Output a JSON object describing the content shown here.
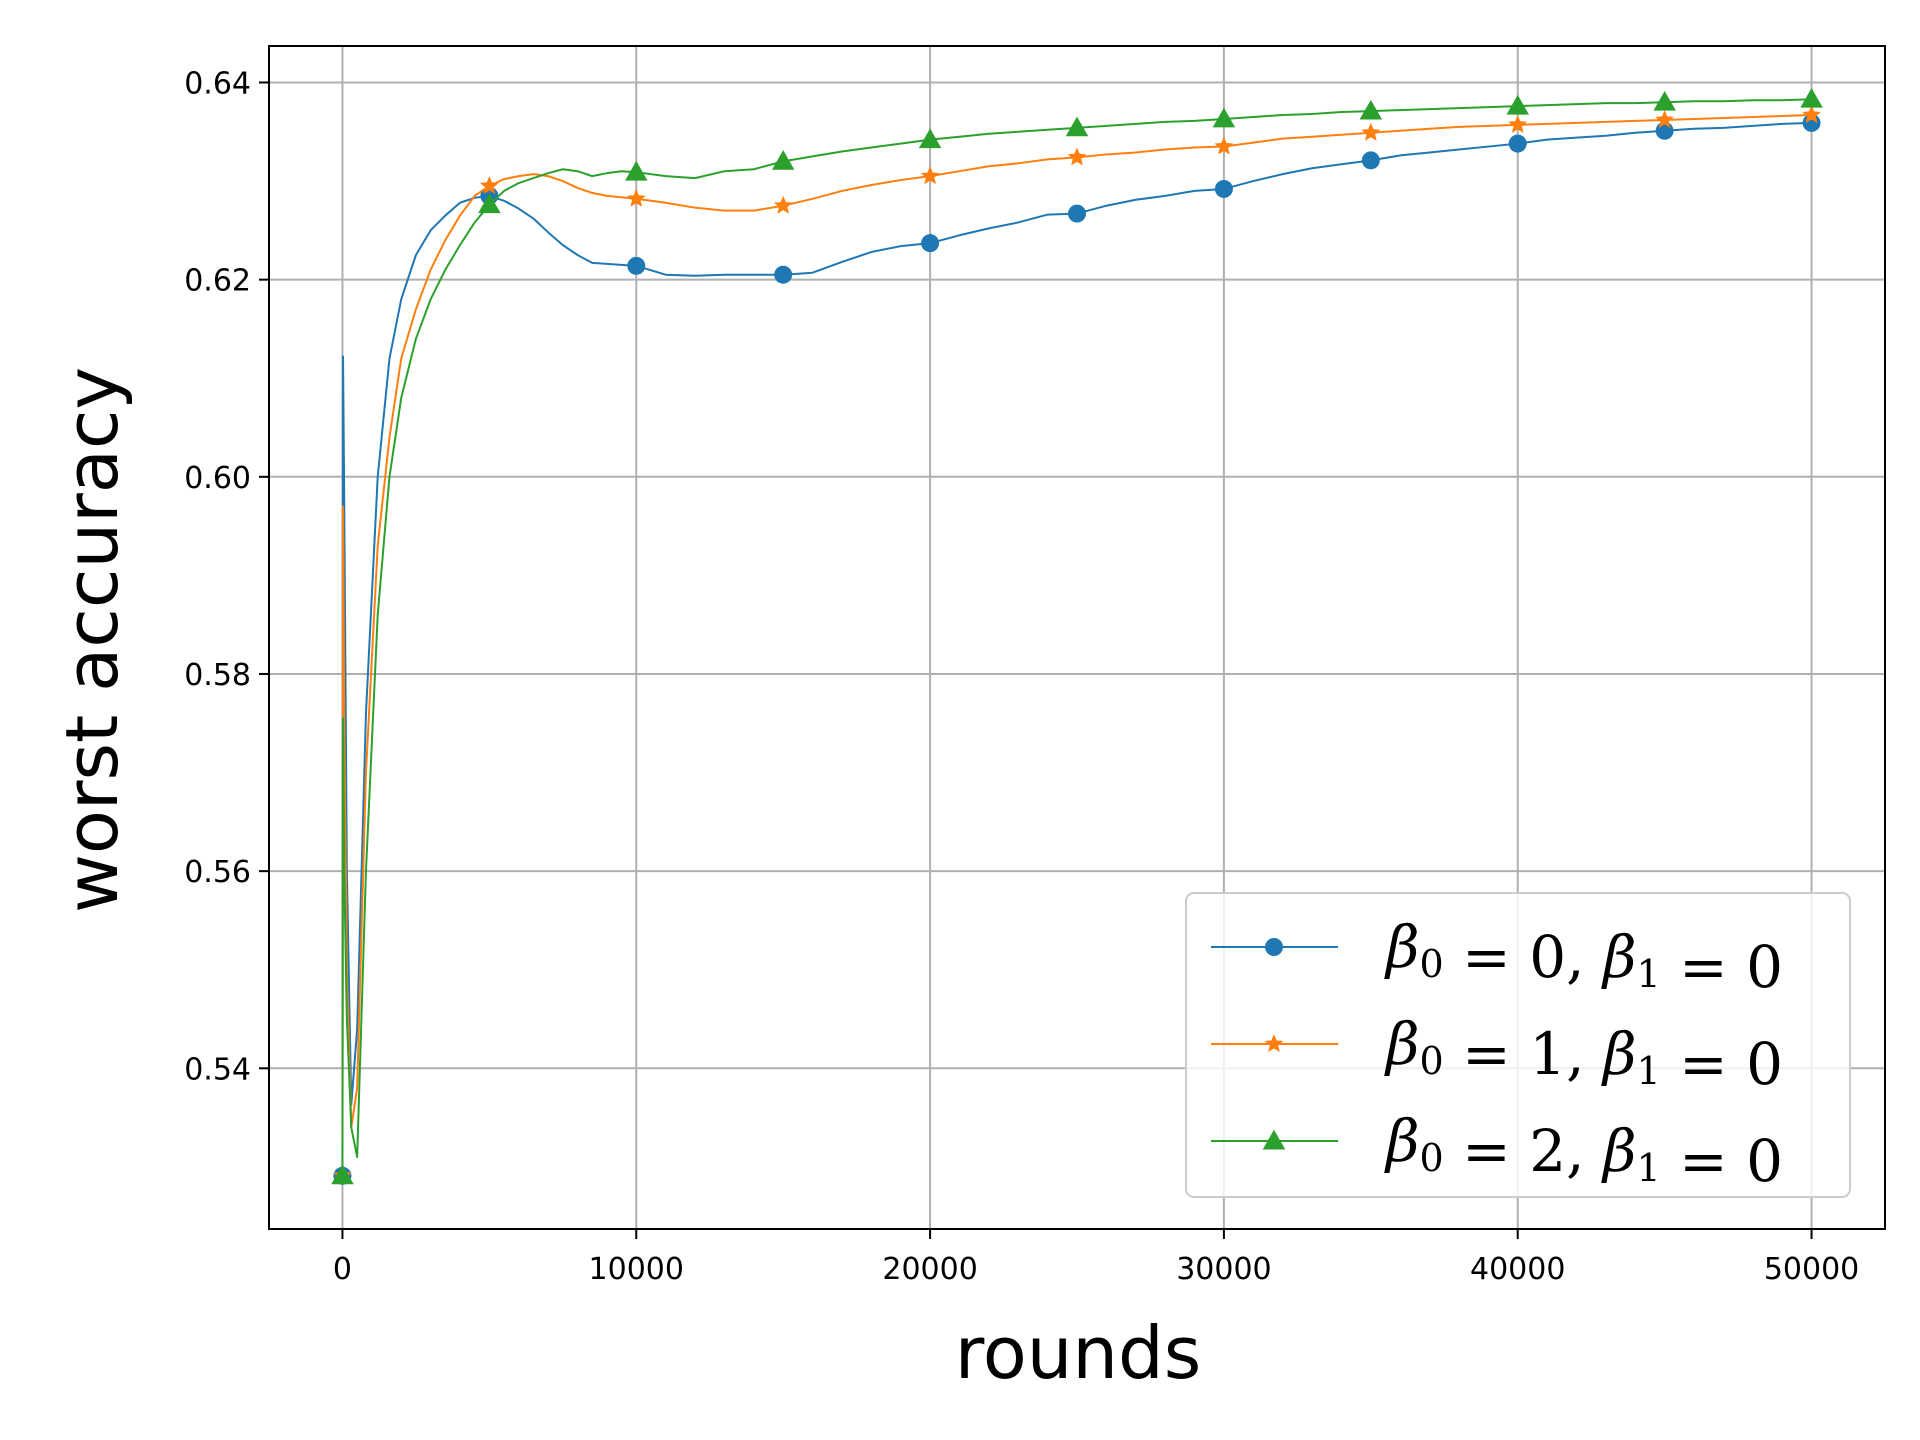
{
  "chart_data": {
    "type": "line",
    "xlabel": "rounds",
    "ylabel": "worst accuracy",
    "xlim": [
      -2500,
      52500
    ],
    "ylim": [
      0.5237,
      0.6437
    ],
    "xticks": [
      0,
      10000,
      20000,
      30000,
      40000,
      50000
    ],
    "xtick_labels": [
      "0",
      "10000",
      "20000",
      "30000",
      "40000",
      "50000"
    ],
    "yticks": [
      0.54,
      0.56,
      0.58,
      0.6,
      0.62,
      0.64
    ],
    "ytick_labels": [
      "0.54",
      "0.56",
      "0.58",
      "0.60",
      "0.62",
      "0.64"
    ],
    "grid": true,
    "legend_position": "bottom-right",
    "series": [
      {
        "name": "β0 = 0, β1 = 0",
        "legend": {
          "beta0": "0",
          "beta1": "0"
        },
        "color": "#1f77b4",
        "marker": "circle",
        "markers": [
          [
            0,
            0.5291
          ],
          [
            5000,
            0.6285
          ],
          [
            10000,
            0.6214
          ],
          [
            15000,
            0.6205
          ],
          [
            20000,
            0.6237
          ],
          [
            25000,
            0.6267
          ],
          [
            30000,
            0.6292
          ],
          [
            35000,
            0.6321
          ],
          [
            40000,
            0.6338
          ],
          [
            45000,
            0.6351
          ],
          [
            50000,
            0.6359
          ]
        ],
        "points": [
          [
            0,
            0.5291
          ],
          [
            20,
            0.6122
          ],
          [
            60,
            0.5975
          ],
          [
            150,
            0.56
          ],
          [
            300,
            0.5363
          ],
          [
            500,
            0.544
          ],
          [
            800,
            0.576
          ],
          [
            1200,
            0.6
          ],
          [
            1600,
            0.612
          ],
          [
            2000,
            0.618
          ],
          [
            2500,
            0.6225
          ],
          [
            3000,
            0.625
          ],
          [
            3500,
            0.6265
          ],
          [
            4000,
            0.6278
          ],
          [
            4500,
            0.6283
          ],
          [
            5000,
            0.6285
          ],
          [
            5500,
            0.628
          ],
          [
            6000,
            0.6272
          ],
          [
            6500,
            0.6262
          ],
          [
            7000,
            0.6248
          ],
          [
            7500,
            0.6235
          ],
          [
            8000,
            0.6225
          ],
          [
            8500,
            0.6217
          ],
          [
            9000,
            0.6216
          ],
          [
            10000,
            0.6214
          ],
          [
            11000,
            0.6205
          ],
          [
            12000,
            0.6204
          ],
          [
            13000,
            0.6205
          ],
          [
            14000,
            0.6205
          ],
          [
            15000,
            0.6205
          ],
          [
            16000,
            0.6207
          ],
          [
            17000,
            0.6218
          ],
          [
            18000,
            0.6228
          ],
          [
            19000,
            0.6234
          ],
          [
            20000,
            0.6237
          ],
          [
            21000,
            0.6245
          ],
          [
            22000,
            0.6252
          ],
          [
            23000,
            0.6258
          ],
          [
            24000,
            0.6266
          ],
          [
            25000,
            0.6267
          ],
          [
            26000,
            0.6275
          ],
          [
            27000,
            0.6281
          ],
          [
            28000,
            0.6285
          ],
          [
            29000,
            0.629
          ],
          [
            30000,
            0.6292
          ],
          [
            31000,
            0.63
          ],
          [
            32000,
            0.6307
          ],
          [
            33000,
            0.6313
          ],
          [
            34000,
            0.6317
          ],
          [
            35000,
            0.6321
          ],
          [
            36000,
            0.6326
          ],
          [
            37000,
            0.6329
          ],
          [
            38000,
            0.6332
          ],
          [
            39000,
            0.6335
          ],
          [
            40000,
            0.6338
          ],
          [
            41000,
            0.6342
          ],
          [
            42000,
            0.6344
          ],
          [
            43000,
            0.6346
          ],
          [
            44000,
            0.6349
          ],
          [
            45000,
            0.6351
          ],
          [
            46000,
            0.6353
          ],
          [
            47000,
            0.6354
          ],
          [
            48000,
            0.6356
          ],
          [
            49000,
            0.6358
          ],
          [
            50000,
            0.6359
          ]
        ]
      },
      {
        "name": "β0 = 1, β1 = 0",
        "legend": {
          "beta0": "1",
          "beta1": "0"
        },
        "color": "#ff7f0e",
        "marker": "star",
        "markers": [
          [
            0,
            0.5291
          ],
          [
            5000,
            0.6295
          ],
          [
            10000,
            0.6282
          ],
          [
            15000,
            0.6275
          ],
          [
            20000,
            0.6305
          ],
          [
            25000,
            0.6324
          ],
          [
            30000,
            0.6335
          ],
          [
            35000,
            0.6349
          ],
          [
            40000,
            0.6357
          ],
          [
            45000,
            0.6362
          ],
          [
            50000,
            0.6367
          ]
        ],
        "points": [
          [
            0,
            0.5291
          ],
          [
            20,
            0.597
          ],
          [
            60,
            0.575
          ],
          [
            150,
            0.55
          ],
          [
            300,
            0.534
          ],
          [
            500,
            0.538
          ],
          [
            800,
            0.57
          ],
          [
            1200,
            0.593
          ],
          [
            1600,
            0.604
          ],
          [
            2000,
            0.612
          ],
          [
            2500,
            0.617
          ],
          [
            3000,
            0.621
          ],
          [
            3500,
            0.624
          ],
          [
            4000,
            0.6265
          ],
          [
            4500,
            0.6285
          ],
          [
            5000,
            0.6295
          ],
          [
            5500,
            0.6302
          ],
          [
            6000,
            0.6305
          ],
          [
            6500,
            0.6307
          ],
          [
            7000,
            0.6305
          ],
          [
            7500,
            0.63
          ],
          [
            8000,
            0.6293
          ],
          [
            8500,
            0.6288
          ],
          [
            9000,
            0.6285
          ],
          [
            10000,
            0.6282
          ],
          [
            11000,
            0.6278
          ],
          [
            12000,
            0.6273
          ],
          [
            13000,
            0.627
          ],
          [
            14000,
            0.627
          ],
          [
            15000,
            0.6275
          ],
          [
            16000,
            0.6282
          ],
          [
            17000,
            0.629
          ],
          [
            18000,
            0.6296
          ],
          [
            19000,
            0.6301
          ],
          [
            20000,
            0.6305
          ],
          [
            21000,
            0.631
          ],
          [
            22000,
            0.6315
          ],
          [
            23000,
            0.6318
          ],
          [
            24000,
            0.6322
          ],
          [
            25000,
            0.6324
          ],
          [
            26000,
            0.6327
          ],
          [
            27000,
            0.6329
          ],
          [
            28000,
            0.6332
          ],
          [
            29000,
            0.6334
          ],
          [
            30000,
            0.6335
          ],
          [
            31000,
            0.6339
          ],
          [
            32000,
            0.6343
          ],
          [
            33000,
            0.6345
          ],
          [
            34000,
            0.6347
          ],
          [
            35000,
            0.6349
          ],
          [
            36000,
            0.6351
          ],
          [
            37000,
            0.6353
          ],
          [
            38000,
            0.6355
          ],
          [
            39000,
            0.6356
          ],
          [
            40000,
            0.6357
          ],
          [
            41000,
            0.6358
          ],
          [
            42000,
            0.6359
          ],
          [
            43000,
            0.636
          ],
          [
            44000,
            0.6361
          ],
          [
            45000,
            0.6362
          ],
          [
            46000,
            0.6363
          ],
          [
            47000,
            0.6364
          ],
          [
            48000,
            0.6365
          ],
          [
            49000,
            0.6366
          ],
          [
            50000,
            0.6367
          ]
        ]
      },
      {
        "name": "β0 = 2, β1 = 0",
        "legend": {
          "beta0": "2",
          "beta1": "0"
        },
        "color": "#2ca02c",
        "marker": "triangle",
        "markers": [
          [
            0,
            0.5291
          ],
          [
            5000,
            0.6276
          ],
          [
            10000,
            0.6309
          ],
          [
            15000,
            0.632
          ],
          [
            20000,
            0.6342
          ],
          [
            25000,
            0.6354
          ],
          [
            30000,
            0.6363
          ],
          [
            35000,
            0.6371
          ],
          [
            40000,
            0.6376
          ],
          [
            45000,
            0.638
          ],
          [
            50000,
            0.6383
          ]
        ],
        "points": [
          [
            0,
            0.5291
          ],
          [
            20,
            0.5755
          ],
          [
            60,
            0.56
          ],
          [
            150,
            0.545
          ],
          [
            300,
            0.534
          ],
          [
            500,
            0.531
          ],
          [
            800,
            0.56
          ],
          [
            1200,
            0.586
          ],
          [
            1600,
            0.6
          ],
          [
            2000,
            0.608
          ],
          [
            2500,
            0.614
          ],
          [
            3000,
            0.618
          ],
          [
            3500,
            0.621
          ],
          [
            4000,
            0.6235
          ],
          [
            4500,
            0.6258
          ],
          [
            5000,
            0.6276
          ],
          [
            5500,
            0.629
          ],
          [
            6000,
            0.6298
          ],
          [
            6500,
            0.6303
          ],
          [
            7000,
            0.6308
          ],
          [
            7500,
            0.6312
          ],
          [
            8000,
            0.631
          ],
          [
            8500,
            0.6305
          ],
          [
            9000,
            0.6308
          ],
          [
            9500,
            0.631
          ],
          [
            10000,
            0.6309
          ],
          [
            11000,
            0.6305
          ],
          [
            12000,
            0.6303
          ],
          [
            13000,
            0.631
          ],
          [
            14000,
            0.6312
          ],
          [
            15000,
            0.632
          ],
          [
            16000,
            0.6325
          ],
          [
            17000,
            0.633
          ],
          [
            18000,
            0.6334
          ],
          [
            19000,
            0.6338
          ],
          [
            20000,
            0.6342
          ],
          [
            21000,
            0.6345
          ],
          [
            22000,
            0.6348
          ],
          [
            23000,
            0.635
          ],
          [
            24000,
            0.6352
          ],
          [
            25000,
            0.6354
          ],
          [
            26000,
            0.6356
          ],
          [
            27000,
            0.6358
          ],
          [
            28000,
            0.636
          ],
          [
            29000,
            0.6361
          ],
          [
            30000,
            0.6363
          ],
          [
            31000,
            0.6365
          ],
          [
            32000,
            0.6367
          ],
          [
            33000,
            0.6368
          ],
          [
            34000,
            0.637
          ],
          [
            35000,
            0.6371
          ],
          [
            36000,
            0.6372
          ],
          [
            37000,
            0.6373
          ],
          [
            38000,
            0.6374
          ],
          [
            39000,
            0.6375
          ],
          [
            40000,
            0.6376
          ],
          [
            41000,
            0.6377
          ],
          [
            42000,
            0.6378
          ],
          [
            43000,
            0.6379
          ],
          [
            44000,
            0.6379
          ],
          [
            45000,
            0.638
          ],
          [
            46000,
            0.6381
          ],
          [
            47000,
            0.6381
          ],
          [
            48000,
            0.6382
          ],
          [
            49000,
            0.6382
          ],
          [
            50000,
            0.6383
          ]
        ]
      }
    ]
  }
}
